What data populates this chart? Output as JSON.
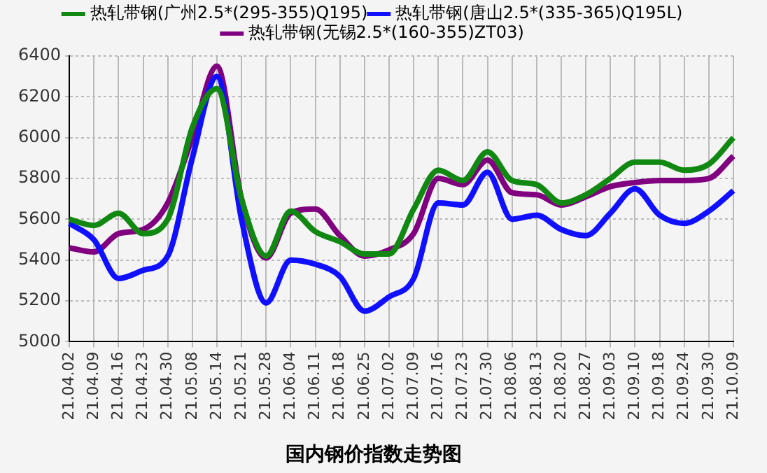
{
  "chart_data": {
    "type": "line",
    "title": "国内钢价指数走势图",
    "categories": [
      "21.04.02",
      "21.04.09",
      "21.04.16",
      "21.04.23",
      "21.04.30",
      "21.05.08",
      "21.05.14",
      "21.05.21",
      "21.05.28",
      "21.06.04",
      "21.06.11",
      "21.06.18",
      "21.06.25",
      "21.07.02",
      "21.07.09",
      "21.07.16",
      "21.07.23",
      "21.07.30",
      "21.08.06",
      "21.08.13",
      "21.08.20",
      "21.08.27",
      "21.09.03",
      "21.09.10",
      "21.09.18",
      "21.09.24",
      "21.09.30",
      "21.10.09"
    ],
    "series": [
      {
        "name": "热轧带钢(广州2.5*(295-355)Q195)",
        "color": "#118811",
        "values": [
          5600,
          5570,
          5630,
          5530,
          5600,
          6050,
          6240,
          5700,
          5420,
          5640,
          5540,
          5490,
          5430,
          5430,
          5650,
          5840,
          5790,
          5930,
          5790,
          5770,
          5680,
          5720,
          5800,
          5880,
          5880,
          5840,
          5870,
          6000
        ]
      },
      {
        "name": "热轧带钢(唐山2.5*(335-365)Q195L)",
        "color": "#1010ff",
        "values": [
          5580,
          5500,
          5310,
          5350,
          5420,
          5900,
          6300,
          5600,
          5190,
          5400,
          5380,
          5320,
          5150,
          5220,
          5310,
          5680,
          5670,
          5830,
          5600,
          5620,
          5550,
          5520,
          5630,
          5750,
          5620,
          5580,
          5640,
          5740
        ]
      },
      {
        "name": "热轧带钢(无锡2.5*(160-355)ZT03)",
        "color": "#800080",
        "values": [
          5460,
          5440,
          5530,
          5550,
          5680,
          6000,
          6350,
          5700,
          5410,
          5630,
          5650,
          5520,
          5420,
          5450,
          5530,
          5800,
          5770,
          5890,
          5730,
          5720,
          5670,
          5710,
          5760,
          5780,
          5790,
          5790,
          5800,
          5910
        ]
      }
    ],
    "ylim": [
      5000,
      6400
    ],
    "yticks": [
      5000,
      5200,
      5400,
      5600,
      5800,
      6000,
      6200,
      6400
    ],
    "grid": true,
    "legend": "top",
    "marker": "none",
    "line_style": "solid"
  }
}
